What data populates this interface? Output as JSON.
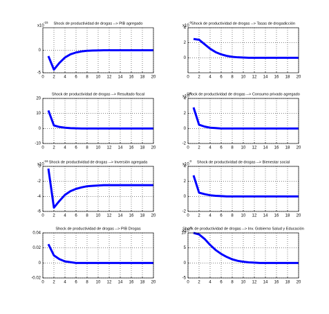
{
  "chart_data": [
    {
      "type": "line",
      "title": "Shock de productividad de drogas --> PIB agregado",
      "scale_label": "x10",
      "scale_exponent": "-15",
      "x": [
        1,
        2,
        3,
        4,
        5,
        6,
        7,
        8,
        9,
        10,
        11,
        12,
        13,
        14,
        15,
        16,
        17,
        18,
        19,
        20
      ],
      "values": [
        -1.3,
        -4.3,
        -2.8,
        -1.6,
        -0.9,
        -0.5,
        -0.25,
        -0.12,
        -0.06,
        -0.03,
        0,
        0,
        0,
        0,
        0,
        0,
        0,
        0,
        0,
        0
      ],
      "color": "#0000ff",
      "xlim": [
        0,
        20
      ],
      "xticks": [
        0,
        2,
        4,
        6,
        8,
        10,
        12,
        14,
        16,
        18,
        20
      ],
      "ylim": [
        -5,
        5
      ],
      "yticks": [
        -5,
        0
      ],
      "grid": true
    },
    {
      "type": "line",
      "title": "Shock de productividad de drogas --> Tasas de drogadicción",
      "scale_label": "x10",
      "scale_exponent": "-3",
      "x": [
        1,
        2,
        3,
        4,
        5,
        6,
        7,
        8,
        9,
        10,
        11,
        12,
        13,
        14,
        15,
        16,
        17,
        18,
        19,
        20
      ],
      "values": [
        2.5,
        2.4,
        1.8,
        1.2,
        0.75,
        0.45,
        0.25,
        0.12,
        0.06,
        0.03,
        0,
        0,
        0,
        0,
        0,
        0,
        0,
        0,
        0,
        0
      ],
      "color": "#0000ff",
      "xlim": [
        0,
        20
      ],
      "xticks": [
        0,
        2,
        4,
        6,
        8,
        10,
        12,
        14,
        16,
        18,
        20
      ],
      "ylim": [
        -2,
        4
      ],
      "yticks": [
        0,
        2,
        4
      ],
      "grid": true
    },
    {
      "type": "line",
      "title": "Shock de productividad de drogas --> Resultado fiscal",
      "x": [
        1,
        2,
        3,
        4,
        5,
        6,
        7,
        8,
        9,
        10,
        11,
        12,
        13,
        14,
        15,
        16,
        17,
        18,
        19,
        20
      ],
      "values": [
        12,
        2,
        1,
        0.5,
        0.2,
        0.1,
        0,
        0,
        0,
        0,
        0,
        0,
        0,
        0,
        0,
        0,
        0,
        0,
        0,
        0
      ],
      "color": "#0000ff",
      "xlim": [
        0,
        20
      ],
      "xticks": [
        0,
        2,
        4,
        6,
        8,
        10,
        12,
        14,
        16,
        18,
        20
      ],
      "ylim": [
        -10,
        20
      ],
      "yticks": [
        -10,
        0,
        10,
        20
      ],
      "grid": true
    },
    {
      "type": "line",
      "title": "Shock de productividad de drogas --> Consumo privado agregado",
      "scale_label": "x10",
      "scale_exponent": "-3",
      "x": [
        1,
        2,
        3,
        4,
        5,
        6,
        7,
        8,
        9,
        10,
        11,
        12,
        13,
        14,
        15,
        16,
        17,
        18,
        19,
        20
      ],
      "values": [
        2.8,
        0.5,
        0.25,
        0.1,
        0.05,
        0,
        0,
        0,
        0,
        0,
        0,
        0,
        0,
        0,
        0,
        0,
        0,
        0,
        0,
        0
      ],
      "color": "#0000ff",
      "xlim": [
        0,
        20
      ],
      "xticks": [
        0,
        2,
        4,
        6,
        8,
        10,
        12,
        14,
        16,
        18,
        20
      ],
      "ylim": [
        -2,
        4
      ],
      "yticks": [
        -2,
        0,
        2,
        4
      ],
      "grid": true
    },
    {
      "type": "line",
      "title": "Shock de productividad de drogas --> Inversión agregada",
      "scale_label": "x10",
      "scale_exponent": "-16",
      "x": [
        1,
        2,
        3,
        4,
        5,
        6,
        7,
        8,
        9,
        10,
        11,
        12,
        13,
        14,
        15,
        16,
        17,
        18,
        19,
        20
      ],
      "values": [
        -0.3,
        -5.5,
        -4.6,
        -3.8,
        -3.3,
        -3,
        -2.8,
        -2.65,
        -2.6,
        -2.55,
        -2.5,
        -2.5,
        -2.5,
        -2.5,
        -2.5,
        -2.5,
        -2.5,
        -2.5,
        -2.5,
        -2.5
      ],
      "color": "#0000ff",
      "xlim": [
        0,
        20
      ],
      "xticks": [
        0,
        2,
        4,
        6,
        8,
        10,
        12,
        14,
        16,
        18,
        20
      ],
      "ylim": [
        -6,
        0
      ],
      "yticks": [
        -6,
        -4,
        -2,
        0
      ],
      "grid": true
    },
    {
      "type": "line",
      "title": "Shock de productividad de drogas --> Bienestar social",
      "scale_label": "x10",
      "scale_exponent": "-3",
      "x": [
        1,
        2,
        3,
        4,
        5,
        6,
        7,
        8,
        9,
        10,
        11,
        12,
        13,
        14,
        15,
        16,
        17,
        18,
        19,
        20
      ],
      "values": [
        2.8,
        0.5,
        0.3,
        0.15,
        0.08,
        0.04,
        0,
        0,
        0,
        0,
        0,
        0,
        0,
        0,
        0,
        0,
        0,
        0,
        0,
        0
      ],
      "color": "#0000ff",
      "xlim": [
        0,
        20
      ],
      "xticks": [
        0,
        2,
        4,
        6,
        8,
        10,
        12,
        14,
        16,
        18,
        20
      ],
      "ylim": [
        -2,
        4
      ],
      "yticks": [
        -2,
        0,
        2,
        4
      ],
      "grid": true
    },
    {
      "type": "line",
      "title": "Shock de productividad de drogas --> PIB Drogas",
      "x": [
        1,
        2,
        3,
        4,
        5,
        6,
        7,
        8,
        9,
        10,
        11,
        12,
        13,
        14,
        15,
        16,
        17,
        18,
        19,
        20
      ],
      "values": [
        0.025,
        0.01,
        0.005,
        0.002,
        0.001,
        0,
        0,
        0,
        0,
        0,
        0,
        0,
        0,
        0,
        0,
        0,
        0,
        0,
        0,
        0
      ],
      "color": "#0000ff",
      "xlim": [
        0,
        20
      ],
      "xticks": [
        0,
        2,
        4,
        6,
        8,
        10,
        12,
        14,
        16,
        18,
        20
      ],
      "ylim": [
        -0.02,
        0.04
      ],
      "yticks": [
        -0.02,
        0,
        0.02,
        0.04
      ],
      "grid": true
    },
    {
      "type": "line",
      "title": "Shock de productividad de drogas --> Inv. Gobierno Salud y Educación",
      "scale_label": "x10",
      "scale_exponent": "-3",
      "x": [
        1,
        2,
        3,
        4,
        5,
        6,
        7,
        8,
        9,
        10,
        11,
        12,
        13,
        14,
        15,
        16,
        17,
        18,
        19,
        20
      ],
      "values": [
        10,
        9.5,
        8,
        6,
        4.3,
        3,
        2,
        1.2,
        0.7,
        0.4,
        0.2,
        0.1,
        0,
        0,
        0,
        0,
        0,
        0,
        0,
        0
      ],
      "color": "#0000ff",
      "xlim": [
        0,
        20
      ],
      "xticks": [
        0,
        2,
        4,
        6,
        8,
        10,
        12,
        14,
        16,
        18,
        20
      ],
      "ylim": [
        -5,
        10
      ],
      "yticks": [
        -5,
        0,
        5,
        10
      ],
      "grid": true
    }
  ]
}
